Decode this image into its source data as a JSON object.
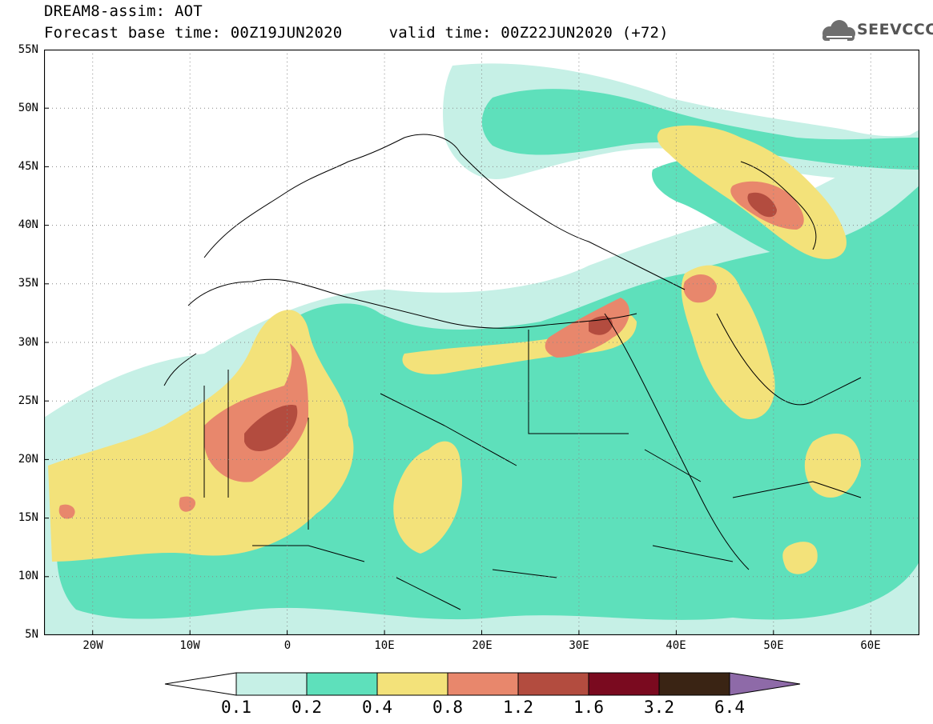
{
  "header": {
    "title": "DREAM8-assim: AOT",
    "subtitle": "Forecast base time: 00Z19JUN2020     valid time: 00Z22JUN2020 (+72)"
  },
  "logo": {
    "text": "SEEVCCC",
    "icon": "cloud-icon"
  },
  "map": {
    "lat_labels": [
      "55N",
      "50N",
      "45N",
      "40N",
      "35N",
      "30N",
      "25N",
      "20N",
      "15N",
      "10N",
      "5N"
    ],
    "lon_labels": [
      "20W",
      "10W",
      "0",
      "10E",
      "20E",
      "30E",
      "40E",
      "50E",
      "60E"
    ],
    "lon_range": [
      -25,
      65
    ],
    "lat_range": [
      5,
      55
    ],
    "grid": "dotted"
  },
  "colorbar": {
    "labels": [
      "0.1",
      "0.2",
      "0.4",
      "0.8",
      "1.2",
      "1.6",
      "3.2",
      "6.4"
    ],
    "colors": [
      "#ffffff",
      "#c6f0e6",
      "#5ee0bb",
      "#f3e27a",
      "#e8876c",
      "#b34c3f",
      "#7a0a1f",
      "#3a2414",
      "#8e6aa8"
    ]
  }
}
